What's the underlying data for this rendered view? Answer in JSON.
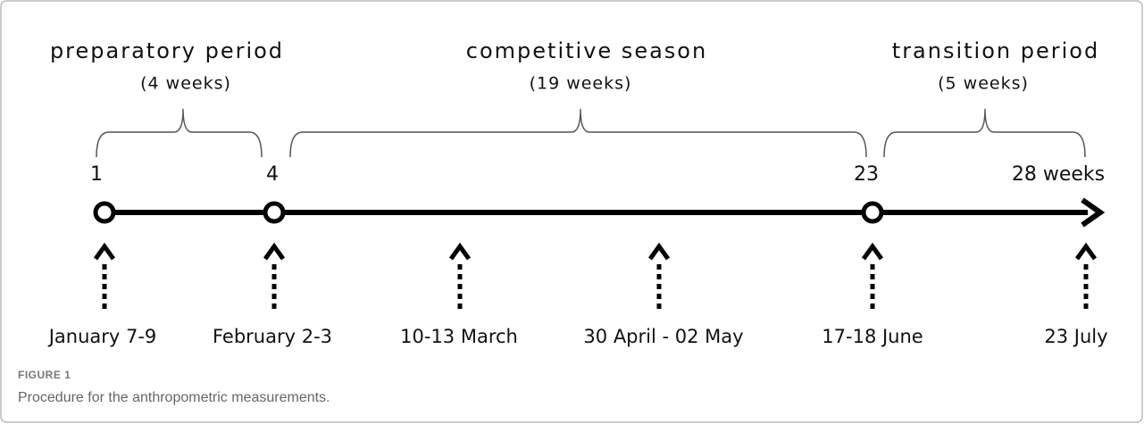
{
  "periods": [
    {
      "name": "preparatory period",
      "duration": "(4 weeks)"
    },
    {
      "name": "competitive season",
      "duration": "(19 weeks)"
    },
    {
      "name": "transition period",
      "duration": "(5 weeks)"
    }
  ],
  "weeks": [
    "1",
    "4",
    "23",
    "28 weeks"
  ],
  "dates": [
    "January 7-9",
    "February 2-3",
    "10-13 March",
    "30 April - 02 May",
    "17-18 June",
    "23 July"
  ],
  "figure": {
    "label": "FIGURE 1",
    "caption": "Procedure for the anthropometric measurements."
  }
}
